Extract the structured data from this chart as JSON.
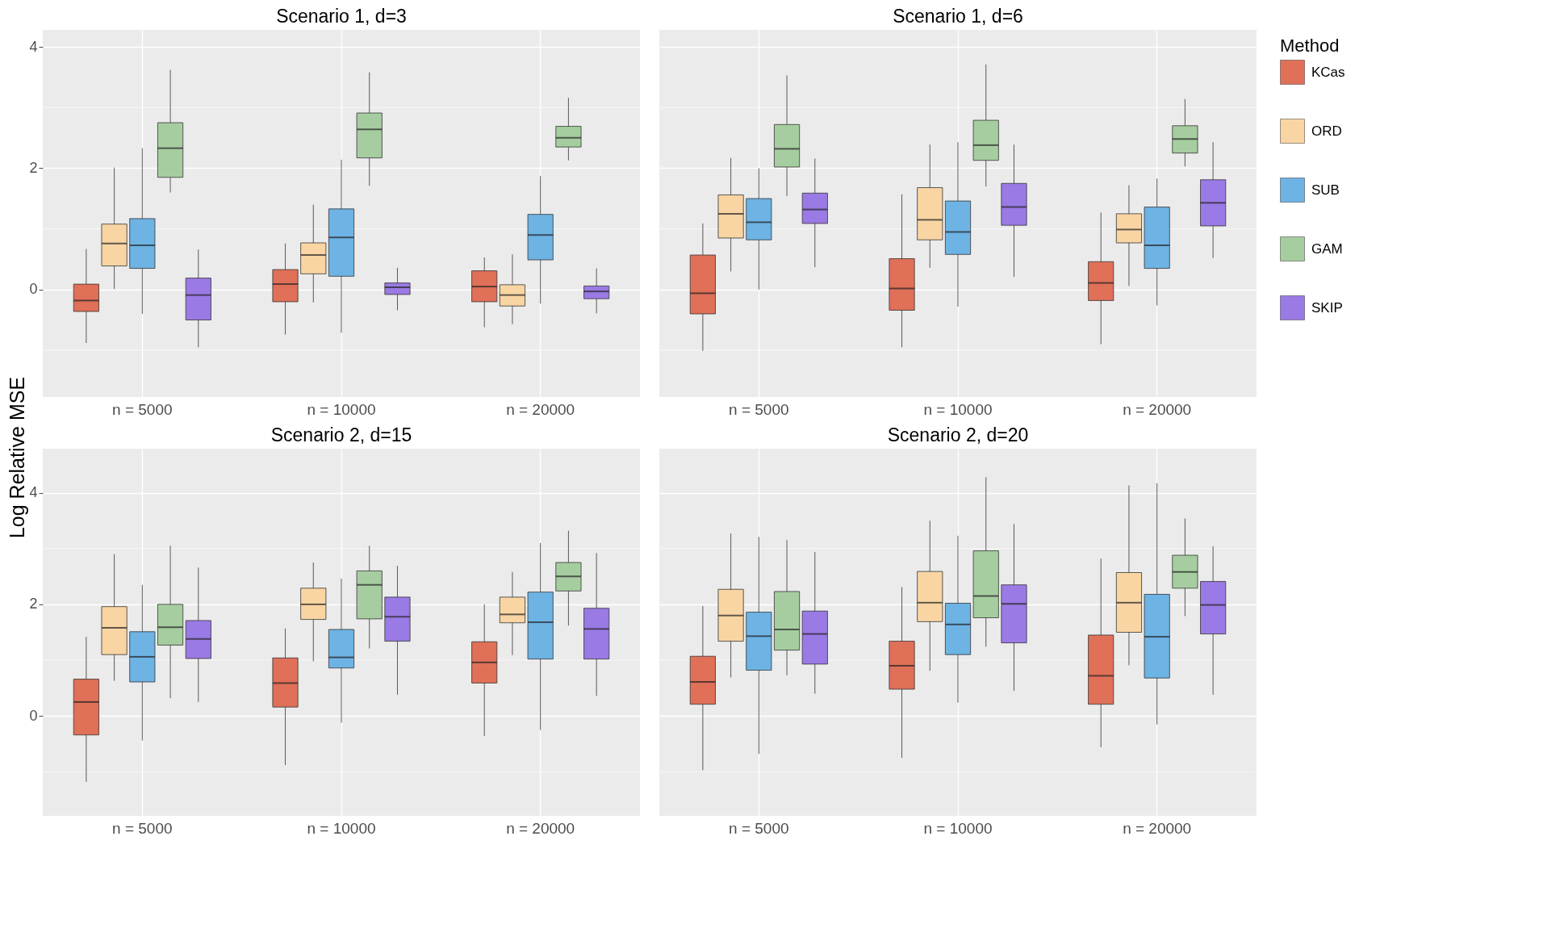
{
  "chart_data": [
    {
      "type": "box",
      "title": "Scenario 1, d=3",
      "ylabel": "Log Relative MSE",
      "legend_title": "Method",
      "legend": "right",
      "grid": true,
      "categories": [
        "n = 5000",
        "n = 10000",
        "n = 20000"
      ],
      "ylim": [
        -1.77,
        4.28
      ],
      "yticks": [
        0,
        2,
        4
      ],
      "series": [
        {
          "name": "KCas",
          "color": "#e07058",
          "boxes": [
            {
              "low": -0.88,
              "q1": -0.36,
              "median": -0.18,
              "q3": 0.09,
              "high": 0.67
            },
            {
              "low": -0.74,
              "q1": -0.2,
              "median": 0.09,
              "q3": 0.33,
              "high": 0.76
            },
            {
              "low": -0.62,
              "q1": -0.2,
              "median": 0.05,
              "q3": 0.31,
              "high": 0.53
            }
          ]
        },
        {
          "name": "ORD",
          "color": "#f8d5a3",
          "boxes": [
            {
              "low": 0.01,
              "q1": 0.39,
              "median": 0.76,
              "q3": 1.08,
              "high": 2.01
            },
            {
              "low": -0.21,
              "q1": 0.26,
              "median": 0.57,
              "q3": 0.77,
              "high": 1.4
            },
            {
              "low": -0.57,
              "q1": -0.27,
              "median": -0.09,
              "q3": 0.08,
              "high": 0.58
            }
          ]
        },
        {
          "name": "SUB",
          "color": "#6db3e4",
          "boxes": [
            {
              "low": -0.4,
              "q1": 0.35,
              "median": 0.73,
              "q3": 1.17,
              "high": 2.33
            },
            {
              "low": -0.71,
              "q1": 0.22,
              "median": 0.86,
              "q3": 1.33,
              "high": 2.14
            },
            {
              "low": -0.23,
              "q1": 0.49,
              "median": 0.9,
              "q3": 1.24,
              "high": 1.87
            }
          ]
        },
        {
          "name": "GAM",
          "color": "#a6cda0",
          "boxes": [
            {
              "low": 1.6,
              "q1": 1.85,
              "median": 2.33,
              "q3": 2.75,
              "high": 3.62
            },
            {
              "low": 1.71,
              "q1": 2.17,
              "median": 2.64,
              "q3": 2.91,
              "high": 3.58
            },
            {
              "low": 2.13,
              "q1": 2.35,
              "median": 2.5,
              "q3": 2.69,
              "high": 3.16
            }
          ]
        },
        {
          "name": "SKIP",
          "color": "#9a7ae4",
          "boxes": [
            {
              "low": -0.95,
              "q1": -0.5,
              "median": -0.09,
              "q3": 0.19,
              "high": 0.66
            },
            {
              "low": -0.34,
              "q1": -0.08,
              "median": 0.04,
              "q3": 0.11,
              "high": 0.36
            },
            {
              "low": -0.39,
              "q1": -0.15,
              "median": -0.03,
              "q3": 0.06,
              "high": 0.35
            }
          ]
        }
      ]
    },
    {
      "type": "box",
      "title": "Scenario 1, d=6",
      "grid": true,
      "tick_labels": "x",
      "categories": [
        "n = 5000",
        "n = 10000",
        "n = 20000"
      ],
      "ylim": [
        -1.77,
        4.28
      ],
      "yticks": [
        0,
        2,
        4
      ],
      "series": [
        {
          "color": "#e07058",
          "boxes": [
            {
              "low": -1.01,
              "q1": -0.4,
              "median": -0.06,
              "q3": 0.57,
              "high": 1.09
            },
            {
              "low": -0.95,
              "q1": -0.34,
              "median": 0.02,
              "q3": 0.51,
              "high": 1.57
            },
            {
              "low": -0.9,
              "q1": -0.18,
              "median": 0.11,
              "q3": 0.46,
              "high": 1.27
            }
          ]
        },
        {
          "color": "#f8d5a3",
          "boxes": [
            {
              "low": 0.3,
              "q1": 0.85,
              "median": 1.25,
              "q3": 1.56,
              "high": 2.17
            },
            {
              "low": 0.36,
              "q1": 0.82,
              "median": 1.15,
              "q3": 1.68,
              "high": 2.39
            },
            {
              "low": 0.06,
              "q1": 0.77,
              "median": 0.99,
              "q3": 1.25,
              "high": 1.72
            }
          ]
        },
        {
          "color": "#6db3e4",
          "boxes": [
            {
              "low": 0.0,
              "q1": 0.82,
              "median": 1.11,
              "q3": 1.5,
              "high": 2.0
            },
            {
              "low": -0.28,
              "q1": 0.58,
              "median": 0.95,
              "q3": 1.46,
              "high": 2.43
            },
            {
              "low": -0.26,
              "q1": 0.35,
              "median": 0.73,
              "q3": 1.36,
              "high": 1.83
            }
          ]
        },
        {
          "color": "#a6cda0",
          "boxes": [
            {
              "low": 1.54,
              "q1": 2.02,
              "median": 2.32,
              "q3": 2.72,
              "high": 3.53
            },
            {
              "low": 1.7,
              "q1": 2.13,
              "median": 2.38,
              "q3": 2.79,
              "high": 3.71
            },
            {
              "low": 2.03,
              "q1": 2.25,
              "median": 2.48,
              "q3": 2.7,
              "high": 3.14
            }
          ]
        },
        {
          "color": "#9a7ae4",
          "boxes": [
            {
              "low": 0.37,
              "q1": 1.09,
              "median": 1.32,
              "q3": 1.59,
              "high": 2.16
            },
            {
              "low": 0.21,
              "q1": 1.06,
              "median": 1.36,
              "q3": 1.75,
              "high": 2.39
            },
            {
              "low": 0.52,
              "q1": 1.05,
              "median": 1.43,
              "q3": 1.81,
              "high": 2.43
            }
          ]
        }
      ]
    },
    {
      "type": "box",
      "title": "Scenario 2, d=15",
      "grid": true,
      "categories": [
        "n = 5000",
        "n = 10000",
        "n = 20000"
      ],
      "ylim": [
        -1.79,
        4.79
      ],
      "yticks": [
        0,
        2,
        4
      ],
      "series": [
        {
          "color": "#e07058",
          "boxes": [
            {
              "low": -1.18,
              "q1": -0.34,
              "median": 0.25,
              "q3": 0.66,
              "high": 1.42
            },
            {
              "low": -0.88,
              "q1": 0.16,
              "median": 0.59,
              "q3": 1.04,
              "high": 1.57
            },
            {
              "low": -0.36,
              "q1": 0.59,
              "median": 0.96,
              "q3": 1.33,
              "high": 2.0
            }
          ]
        },
        {
          "color": "#f8d5a3",
          "boxes": [
            {
              "low": 0.63,
              "q1": 1.1,
              "median": 1.58,
              "q3": 1.96,
              "high": 2.9
            },
            {
              "low": 0.98,
              "q1": 1.73,
              "median": 2.0,
              "q3": 2.29,
              "high": 2.75
            },
            {
              "low": 1.09,
              "q1": 1.67,
              "median": 1.82,
              "q3": 2.13,
              "high": 2.58
            }
          ]
        },
        {
          "color": "#6db3e4",
          "boxes": [
            {
              "low": -0.44,
              "q1": 0.61,
              "median": 1.06,
              "q3": 1.51,
              "high": 2.35
            },
            {
              "low": -0.12,
              "q1": 0.86,
              "median": 1.05,
              "q3": 1.55,
              "high": 2.46
            },
            {
              "low": -0.25,
              "q1": 1.02,
              "median": 1.68,
              "q3": 2.22,
              "high": 3.1
            }
          ]
        },
        {
          "color": "#a6cda0",
          "boxes": [
            {
              "low": 0.32,
              "q1": 1.27,
              "median": 1.59,
              "q3": 2.0,
              "high": 3.05
            },
            {
              "low": 1.21,
              "q1": 1.74,
              "median": 2.35,
              "q3": 2.6,
              "high": 3.05
            },
            {
              "low": 1.62,
              "q1": 2.24,
              "median": 2.5,
              "q3": 2.75,
              "high": 3.32
            }
          ]
        },
        {
          "color": "#9a7ae4",
          "boxes": [
            {
              "low": 0.25,
              "q1": 1.03,
              "median": 1.38,
              "q3": 1.71,
              "high": 2.66
            },
            {
              "low": 0.38,
              "q1": 1.34,
              "median": 1.78,
              "q3": 2.13,
              "high": 2.69
            },
            {
              "low": 0.36,
              "q1": 1.02,
              "median": 1.56,
              "q3": 1.93,
              "high": 2.92
            }
          ]
        }
      ]
    },
    {
      "type": "box",
      "title": "Scenario 2, d=20",
      "grid": true,
      "tick_labels": "x",
      "categories": [
        "n = 5000",
        "n = 10000",
        "n = 20000"
      ],
      "ylim": [
        -1.79,
        4.79
      ],
      "yticks": [
        0,
        2,
        4
      ],
      "series": [
        {
          "color": "#e07058",
          "boxes": [
            {
              "low": -0.97,
              "q1": 0.21,
              "median": 0.61,
              "q3": 1.07,
              "high": 1.97
            },
            {
              "low": -0.75,
              "q1": 0.48,
              "median": 0.9,
              "q3": 1.34,
              "high": 2.31
            },
            {
              "low": -0.56,
              "q1": 0.21,
              "median": 0.72,
              "q3": 1.45,
              "high": 2.82
            }
          ]
        },
        {
          "color": "#f8d5a3",
          "boxes": [
            {
              "low": 0.69,
              "q1": 1.34,
              "median": 1.8,
              "q3": 2.27,
              "high": 3.27
            },
            {
              "low": 0.81,
              "q1": 1.69,
              "median": 2.03,
              "q3": 2.59,
              "high": 3.5
            },
            {
              "low": 0.91,
              "q1": 1.5,
              "median": 2.03,
              "q3": 2.57,
              "high": 4.13
            }
          ]
        },
        {
          "color": "#6db3e4",
          "boxes": [
            {
              "low": -0.68,
              "q1": 0.82,
              "median": 1.43,
              "q3": 1.86,
              "high": 3.21
            },
            {
              "low": 0.24,
              "q1": 1.1,
              "median": 1.64,
              "q3": 2.02,
              "high": 3.23
            },
            {
              "low": -0.15,
              "q1": 0.68,
              "median": 1.42,
              "q3": 2.18,
              "high": 4.17
            }
          ]
        },
        {
          "color": "#a6cda0",
          "boxes": [
            {
              "low": 0.73,
              "q1": 1.18,
              "median": 1.55,
              "q3": 2.23,
              "high": 3.15
            },
            {
              "low": 1.24,
              "q1": 1.76,
              "median": 2.15,
              "q3": 2.96,
              "high": 4.28
            },
            {
              "low": 1.79,
              "q1": 2.29,
              "median": 2.58,
              "q3": 2.88,
              "high": 3.54
            }
          ]
        },
        {
          "color": "#9a7ae4",
          "boxes": [
            {
              "low": 0.4,
              "q1": 0.93,
              "median": 1.47,
              "q3": 1.88,
              "high": 2.94
            },
            {
              "low": 0.45,
              "q1": 1.31,
              "median": 2.01,
              "q3": 2.35,
              "high": 3.44
            },
            {
              "low": 0.38,
              "q1": 1.47,
              "median": 1.99,
              "q3": 2.41,
              "high": 3.04
            }
          ]
        }
      ]
    }
  ]
}
